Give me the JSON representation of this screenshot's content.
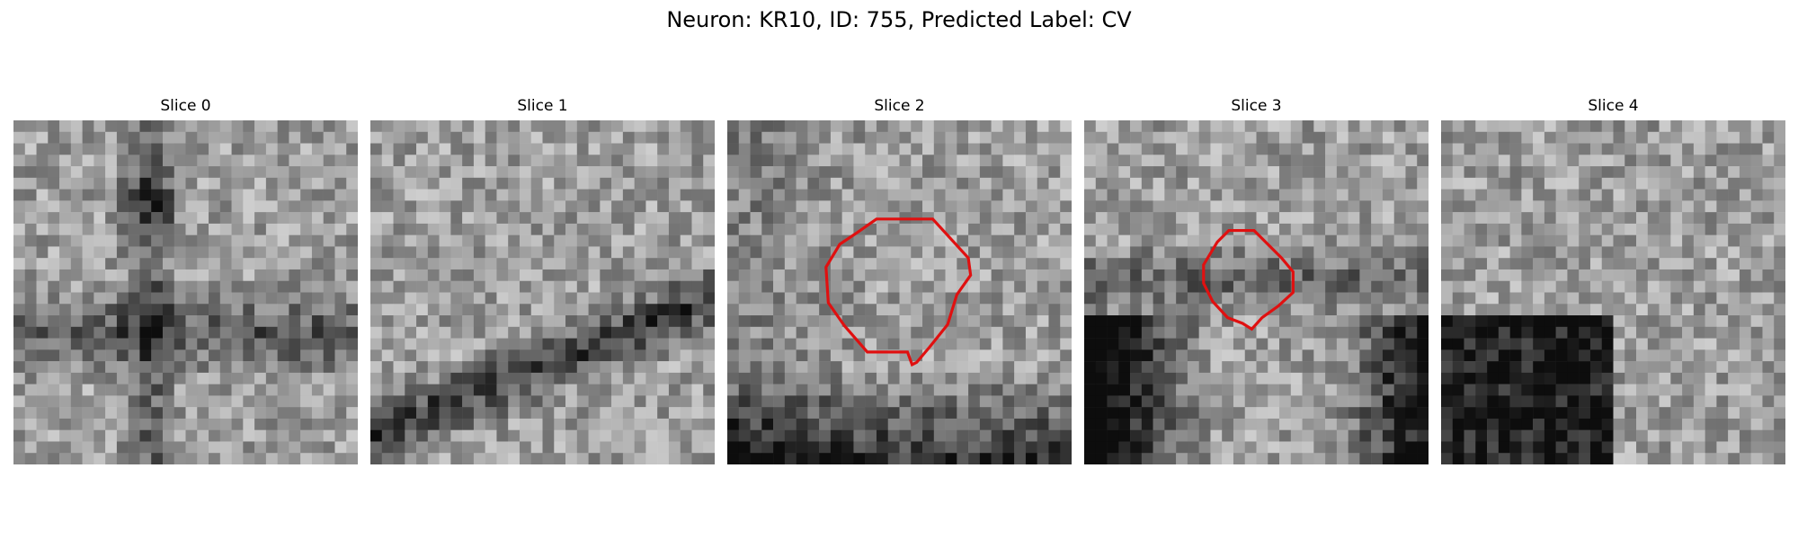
{
  "figure": {
    "title": "Neuron: KR10, ID: 755, Predicted Label: CV"
  },
  "panels": [
    {
      "title": "Slice 0",
      "has_contour": false
    },
    {
      "title": "Slice 1",
      "has_contour": false
    },
    {
      "title": "Slice 2",
      "has_contour": true
    },
    {
      "title": "Slice 3",
      "has_contour": true
    },
    {
      "title": "Slice 4",
      "has_contour": false
    }
  ],
  "colors": {
    "contour": "#e01010",
    "colormap": "grayscale"
  }
}
